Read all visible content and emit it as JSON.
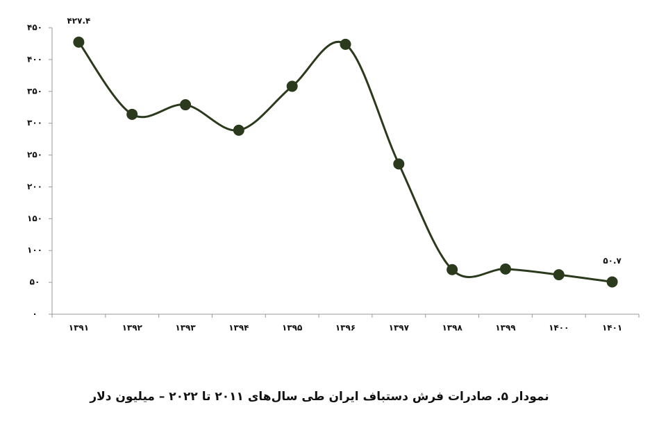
{
  "chart_data": {
    "type": "line",
    "title": "نمودار ۵. صادرات فرش دستباف ایران طی سال‌های ۲۰۱۱ تا ۲۰۲۲ – میلیون دلار",
    "categories": [
      "۱۳۹۱",
      "۱۳۹۲",
      "۱۳۹۳",
      "۱۳۹۴",
      "۱۳۹۵",
      "۱۳۹۶",
      "۱۳۹۷",
      "۱۳۹۸",
      "۱۳۹۹",
      "۱۴۰۰",
      "۱۴۰۱"
    ],
    "values": [
      427.4,
      314,
      329,
      289,
      358,
      424,
      236,
      70,
      71,
      62,
      50.7
    ],
    "value_labels": [
      "۴۲۷.۴",
      null,
      null,
      null,
      null,
      null,
      null,
      null,
      null,
      null,
      "۵۰.۷"
    ],
    "color": "#2b3a1c",
    "ylim": [
      0,
      450
    ],
    "yticks": [
      {
        "value": 0,
        "label": "۰"
      },
      {
        "value": 50,
        "label": "۵۰"
      },
      {
        "value": 100,
        "label": "۱۰۰"
      },
      {
        "value": 150,
        "label": "۱۵۰"
      },
      {
        "value": 200,
        "label": "۲۰۰"
      },
      {
        "value": 250,
        "label": "۲۵۰"
      },
      {
        "value": 300,
        "label": "۳۰۰"
      },
      {
        "value": 350,
        "label": "۳۵۰"
      },
      {
        "value": 400,
        "label": "۴۰۰"
      },
      {
        "value": 450,
        "label": "۴۵۰"
      }
    ]
  }
}
